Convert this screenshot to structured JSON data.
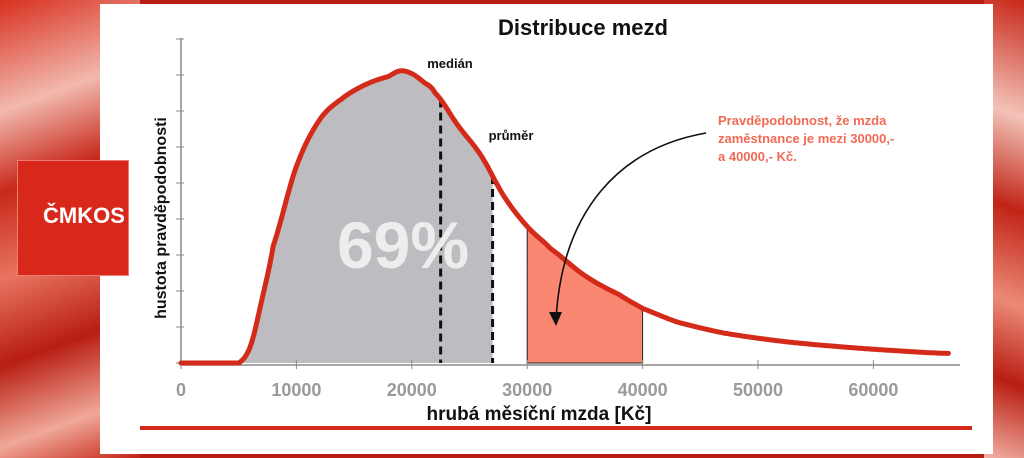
{
  "logo": {
    "text": "ČMKOS"
  },
  "chart_data": {
    "type": "area",
    "title": "Distribuce mezd",
    "xlabel": "hrubá měsíční mzda [Kč]",
    "ylabel": "hustota pravděpodobnosti",
    "xlim": [
      0,
      67000
    ],
    "xticks": [
      "0",
      "10000",
      "20000",
      "30000",
      "40000",
      "50000",
      "60000"
    ],
    "xtick_values": [
      0,
      10000,
      20000,
      30000,
      40000,
      50000,
      60000
    ],
    "y_scale_max": 1.0,
    "curve": {
      "x": [
        0,
        5000,
        6000,
        7000,
        8000,
        10000,
        12000,
        14000,
        16000,
        18000,
        19000,
        20000,
        21000,
        22000,
        24000,
        26000,
        28000,
        30000,
        32000,
        35000,
        38000,
        40000,
        43000,
        47000,
        52000,
        57000,
        62000,
        66500
      ],
      "y": [
        0.0,
        0.0,
        0.06,
        0.23,
        0.43,
        0.72,
        0.89,
        0.97,
        1.02,
        1.05,
        1.07,
        1.06,
        1.03,
        0.99,
        0.87,
        0.76,
        0.61,
        0.5,
        0.42,
        0.32,
        0.25,
        0.2,
        0.15,
        0.11,
        0.08,
        0.06,
        0.045,
        0.035
      ]
    },
    "shaded_gray": {
      "from": 5000,
      "to": 27000,
      "label": "69%"
    },
    "shaded_orange": {
      "from": 30000,
      "to": 40000
    },
    "markers": [
      {
        "name": "medián",
        "x": 22500
      },
      {
        "name": "průměr",
        "x": 27000
      }
    ],
    "annotation": {
      "lines": [
        "Pravděpodobnost, že mzda",
        "zaměstnance je mezi 30000,-",
        "a 40000,- Kč."
      ]
    },
    "colors": {
      "curve": "#d42a1a",
      "gray_fill": "#bdbdc1",
      "orange_fill": "#f98771",
      "annotation_text": "#f06a55",
      "percent_text": "#ededed",
      "axis": "#8a8a8a"
    }
  }
}
